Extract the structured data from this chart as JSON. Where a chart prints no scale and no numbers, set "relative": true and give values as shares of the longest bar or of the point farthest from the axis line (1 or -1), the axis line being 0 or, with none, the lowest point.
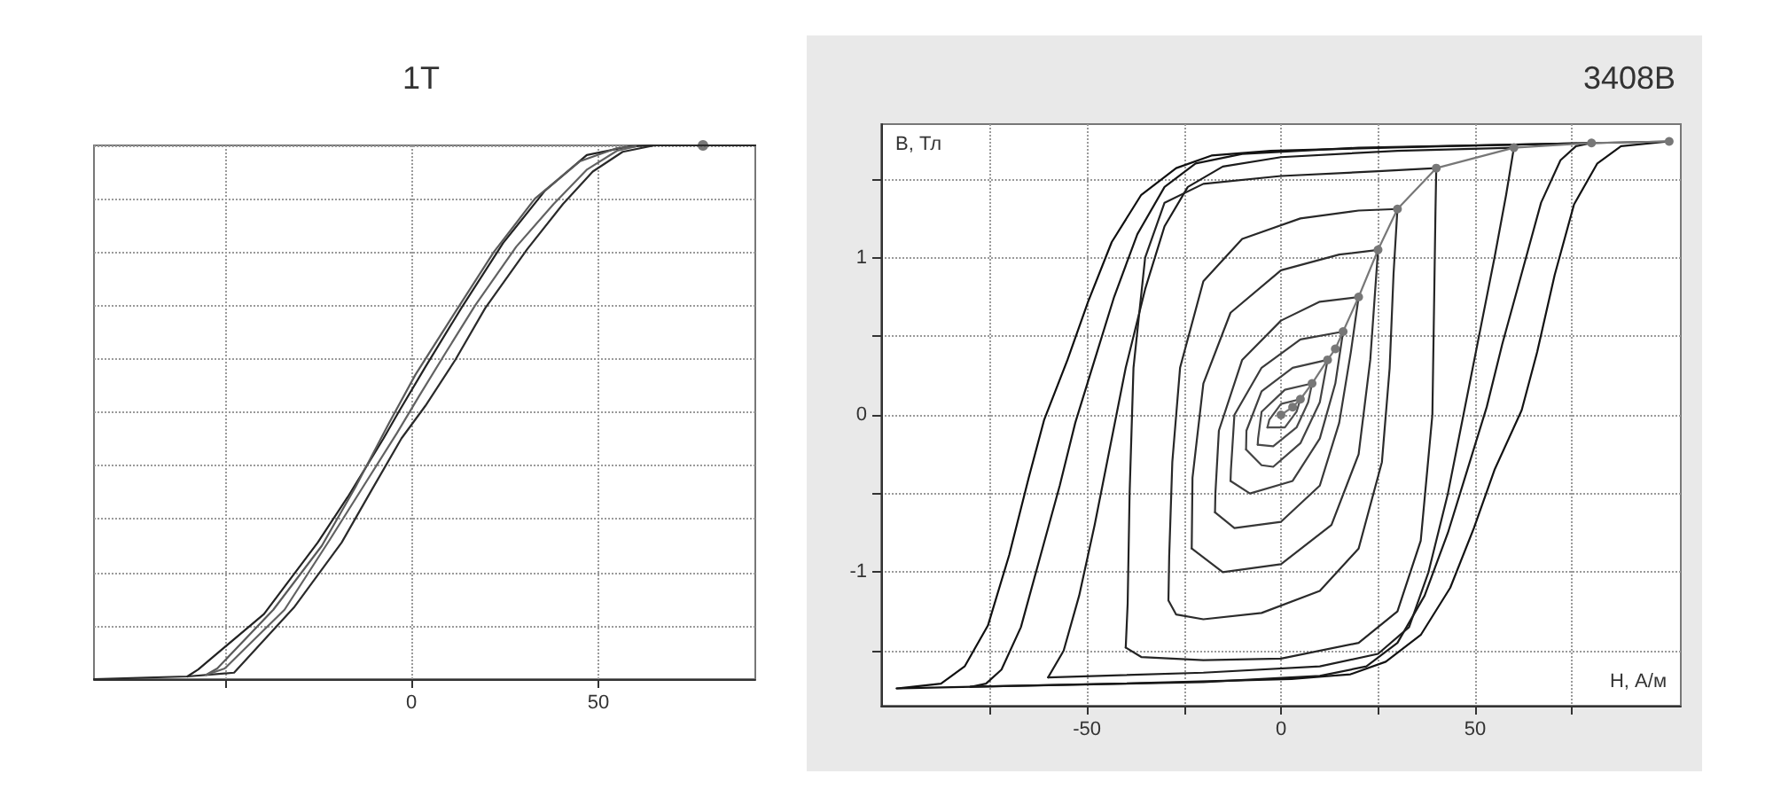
{
  "chart_data": [
    {
      "type": "line",
      "title": "1T",
      "relative": true,
      "tick_labels": "x",
      "grid": true,
      "marker": "none",
      "line_style": "solid",
      "xlim": [
        -85,
        92
      ],
      "xticks": [
        {
          "value": -50,
          "label": null
        },
        0,
        50
      ],
      "series": [
        {
          "color": "#222222",
          "x": [
            -60,
            -57.1,
            -39.5,
            -25.1,
            -17.1,
            -7.5,
            -3.5,
            3.7,
            13.3,
            24.5,
            35.7,
            46.9,
            58.1,
            65
          ],
          "values": [
            0.005,
            0.018,
            0.122,
            0.256,
            0.341,
            0.451,
            0.5,
            0.585,
            0.695,
            0.817,
            0.915,
            0.982,
            0.998,
            1
          ]
        },
        {
          "color": "#2a2a2a",
          "x": [
            -85,
            -60,
            -47.5,
            -31.5,
            -18.7,
            -10.7,
            -2.7,
            3.7,
            11.7,
            19.7,
            30.9,
            40.5,
            48.5,
            56.5,
            65,
            92
          ],
          "values": [
            0,
            0.005,
            0.012,
            0.134,
            0.256,
            0.354,
            0.451,
            0.512,
            0.598,
            0.695,
            0.805,
            0.89,
            0.951,
            0.988,
            1,
            1
          ]
        },
        {
          "color": "#5a5a5a",
          "x": [
            -55,
            -52,
            -37,
            -24,
            -15,
            -6,
            1,
            11,
            22,
            33,
            45,
            55,
            60
          ],
          "values": [
            0.008,
            0.02,
            0.13,
            0.25,
            0.36,
            0.48,
            0.57,
            0.68,
            0.8,
            0.9,
            0.97,
            0.995,
            0.998
          ]
        },
        {
          "color": "#626262",
          "x": [
            -55,
            -50,
            -34,
            -22,
            -13,
            -4,
            2,
            9,
            17,
            28,
            38,
            47,
            55,
            60
          ],
          "values": [
            0.008,
            0.02,
            0.13,
            0.26,
            0.36,
            0.46,
            0.53,
            0.61,
            0.7,
            0.81,
            0.89,
            0.955,
            0.99,
            0.998
          ]
        },
        {
          "type": "scatter",
          "marker": "circle",
          "color": "#555555",
          "x": [
            78
          ],
          "values": [
            1
          ]
        }
      ]
    },
    {
      "type": "line",
      "title": "3408B",
      "xlabel": "H, А/м",
      "ylabel": "B, Тл",
      "grid": true,
      "marker": "none",
      "line_style": "solid",
      "xlim": [
        -103,
        103
      ],
      "ylim": [
        -1.85,
        1.85
      ],
      "xticks": [
        {
          "value": -75,
          "label": null
        },
        -50,
        {
          "value": -25,
          "label": null
        },
        0,
        {
          "value": 25,
          "label": null
        },
        50,
        {
          "value": 75,
          "label": null
        }
      ],
      "yticks": [
        {
          "value": -1.5,
          "label": null
        },
        -1,
        {
          "value": -0.5,
          "label": null
        },
        0,
        {
          "value": 0.5,
          "label": null
        },
        1,
        {
          "value": 1.5,
          "label": null
        }
      ],
      "series": [
        {
          "color": "#101010",
          "x": [
            -99,
            -87.6,
            -81.5,
            -75.5,
            -70,
            -65,
            -61,
            -55,
            -49.7,
            -43.6,
            -36,
            -27,
            -17.9,
            -2.7,
            42.7,
            100
          ],
          "values": [
            -1.74,
            -1.71,
            -1.6,
            -1.34,
            -0.89,
            -0.4,
            -0.03,
            0.35,
            0.72,
            1.1,
            1.4,
            1.57,
            1.65,
            1.68,
            1.71,
            1.74
          ]
        },
        {
          "color": "#131313",
          "x": [
            -99,
            -42.7,
            2.7,
            17.9,
            27,
            36,
            43.6,
            49.7,
            55,
            62,
            66,
            70.5,
            75.5,
            81.5,
            87.6,
            100
          ],
          "values": [
            -1.74,
            -1.71,
            -1.68,
            -1.65,
            -1.57,
            -1.4,
            -1.1,
            -0.72,
            -0.35,
            0.03,
            0.4,
            0.89,
            1.34,
            1.6,
            1.71,
            1.74
          ]
        },
        {
          "color": "#161616",
          "x": [
            -80,
            -76,
            -72,
            -67,
            -62,
            -57,
            -53,
            -48,
            -43,
            -37,
            -30,
            -22,
            -10,
            20,
            80
          ],
          "values": [
            -1.73,
            -1.71,
            -1.62,
            -1.35,
            -0.9,
            -0.45,
            -0.05,
            0.35,
            0.75,
            1.15,
            1.45,
            1.6,
            1.66,
            1.7,
            1.73
          ]
        },
        {
          "color": "#191919",
          "x": [
            -80,
            -20,
            10,
            22,
            30,
            37,
            43,
            48,
            53,
            57,
            62,
            67,
            72,
            76,
            80
          ],
          "values": [
            -1.73,
            -1.7,
            -1.66,
            -1.6,
            -1.45,
            -1.15,
            -0.75,
            -0.35,
            0.05,
            0.45,
            0.9,
            1.35,
            1.62,
            1.71,
            1.73
          ]
        },
        {
          "color": "#1c1c1c",
          "x": [
            -60,
            -56,
            -52,
            -48,
            -44,
            -40,
            -35,
            -30,
            -24,
            -15,
            0,
            30,
            60
          ],
          "values": [
            -1.67,
            -1.5,
            -1.15,
            -0.7,
            -0.2,
            0.3,
            0.8,
            1.2,
            1.45,
            1.58,
            1.64,
            1.68,
            1.7
          ]
        },
        {
          "color": "#1f1f1f",
          "x": [
            -60,
            -20,
            10,
            25,
            33,
            38,
            43,
            47,
            51,
            55,
            58,
            60
          ],
          "values": [
            -1.67,
            -1.64,
            -1.6,
            -1.52,
            -1.35,
            -1,
            -0.5,
            0,
            0.5,
            1,
            1.4,
            1.7
          ]
        },
        {
          "color": "#222222",
          "x": [
            -40,
            -39.5,
            -39,
            -38,
            -35,
            -30,
            -20,
            0,
            25,
            40
          ],
          "values": [
            -1.48,
            -1.2,
            -0.5,
            0.3,
            1,
            1.35,
            1.47,
            1.52,
            1.55,
            1.57
          ]
        },
        {
          "color": "#252525",
          "x": [
            -40,
            -36,
            -20,
            0,
            20,
            30,
            36,
            39,
            39.5,
            39.8,
            40
          ],
          "values": [
            -1.48,
            -1.54,
            -1.56,
            -1.55,
            -1.45,
            -1.25,
            -0.8,
            0,
            0.8,
            1.3,
            1.57
          ]
        },
        {
          "color": "#282828",
          "x": [
            -29,
            -28.8,
            -28,
            -26,
            -20,
            -10,
            5,
            20,
            30
          ],
          "values": [
            -1.18,
            -0.9,
            -0.3,
            0.3,
            0.85,
            1.12,
            1.25,
            1.3,
            1.31
          ]
        },
        {
          "color": "#2b2b2b",
          "x": [
            -29,
            -27,
            -20,
            -5,
            10,
            20,
            26,
            28,
            29,
            30
          ],
          "values": [
            -1.18,
            -1.27,
            -1.3,
            -1.26,
            -1.12,
            -0.85,
            -0.3,
            0.3,
            0.9,
            1.31
          ]
        },
        {
          "color": "#2e2e2e",
          "x": [
            -23,
            -22.8,
            -20,
            -13,
            0,
            15,
            25
          ],
          "values": [
            -0.85,
            -0.4,
            0.2,
            0.65,
            0.92,
            1.02,
            1.05
          ]
        },
        {
          "color": "#313131",
          "x": [
            -23,
            -15,
            0,
            13,
            20,
            23,
            25
          ],
          "values": [
            -0.85,
            -1,
            -0.95,
            -0.7,
            -0.25,
            0.35,
            1.05
          ]
        },
        {
          "color": "#343434",
          "x": [
            -17,
            -16.9,
            -16,
            -10,
            0,
            10,
            20
          ],
          "values": [
            -0.62,
            -0.5,
            -0.1,
            0.35,
            0.6,
            0.72,
            0.75
          ]
        },
        {
          "color": "#373737",
          "x": [
            -17,
            -12,
            0,
            10,
            15,
            18,
            20
          ],
          "values": [
            -0.62,
            -0.72,
            -0.68,
            -0.45,
            -0.05,
            0.4,
            0.75
          ]
        },
        {
          "color": "#3a3a3a",
          "x": [
            -13,
            -12.9,
            -12,
            -5,
            5,
            16
          ],
          "values": [
            -0.42,
            -0.35,
            0,
            0.3,
            0.48,
            0.53
          ]
        },
        {
          "color": "#3d3d3d",
          "x": [
            -13,
            -8,
            3,
            10,
            14,
            16
          ],
          "values": [
            -0.42,
            -0.5,
            -0.42,
            -0.15,
            0.2,
            0.53
          ]
        },
        {
          "color": "#404040",
          "x": [
            -9,
            -8.9,
            -5,
            3,
            12
          ],
          "values": [
            -0.22,
            -0.1,
            0.15,
            0.3,
            0.35
          ]
        },
        {
          "color": "#434343",
          "x": [
            -9,
            -5,
            -2,
            5,
            10,
            12
          ],
          "values": [
            -0.22,
            -0.32,
            -0.33,
            -0.18,
            0.08,
            0.35
          ]
        },
        {
          "color": "#464646",
          "x": [
            -6,
            -5.9,
            -5,
            1,
            8
          ],
          "values": [
            -0.19,
            -0.15,
            0.02,
            0.16,
            0.2
          ]
        },
        {
          "color": "#494949",
          "x": [
            -6,
            -2,
            4,
            7,
            8
          ],
          "values": [
            -0.19,
            -0.2,
            -0.08,
            0.08,
            0.2
          ]
        },
        {
          "color": "#4c4c4c",
          "x": [
            -3.5,
            -3,
            0,
            5
          ],
          "values": [
            -0.08,
            -0.03,
            0.07,
            0.1
          ]
        },
        {
          "color": "#4f4f4f",
          "x": [
            -3.5,
            1,
            4,
            5
          ],
          "values": [
            -0.08,
            -0.08,
            0.02,
            0.1
          ]
        },
        {
          "color": "#777777",
          "marker": "circle",
          "x": [
            0,
            3,
            5,
            8,
            12,
            14,
            16,
            20,
            25,
            30,
            40,
            60,
            80,
            100
          ],
          "values": [
            0,
            0.05,
            0.1,
            0.2,
            0.35,
            0.42,
            0.53,
            0.75,
            1.05,
            1.31,
            1.57,
            1.7,
            1.73,
            1.74
          ]
        }
      ]
    }
  ]
}
